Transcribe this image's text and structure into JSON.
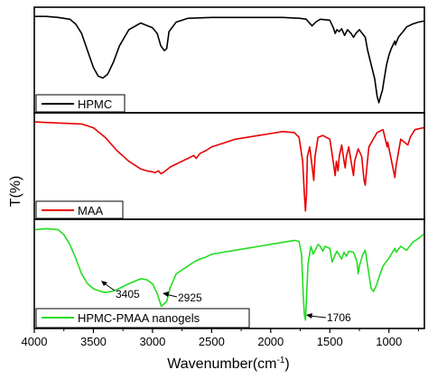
{
  "chart_data": {
    "type": "line",
    "xlabel": "Wavenumber(cm",
    "xlabel_sup": "-1",
    "xlabel_end": ")",
    "ylabel": "T(%)",
    "xlim": [
      4000,
      700
    ],
    "x_reversed": true,
    "x_ticks": [
      4000,
      3500,
      3000,
      2500,
      2000,
      1500,
      1000
    ],
    "x_tick_labels": [
      "4000",
      "3500",
      "3000",
      "2500",
      "2000",
      "1500",
      "1000"
    ],
    "stacked_panels": 3,
    "series": [
      {
        "name": "HPMC",
        "color": "#000000",
        "panel": 0,
        "points": [
          [
            3990,
            0.96
          ],
          [
            3900,
            0.96
          ],
          [
            3800,
            0.95
          ],
          [
            3700,
            0.93
          ],
          [
            3650,
            0.88
          ],
          [
            3600,
            0.78
          ],
          [
            3550,
            0.6
          ],
          [
            3500,
            0.42
          ],
          [
            3460,
            0.33
          ],
          [
            3420,
            0.31
          ],
          [
            3380,
            0.35
          ],
          [
            3330,
            0.48
          ],
          [
            3280,
            0.65
          ],
          [
            3200,
            0.82
          ],
          [
            3100,
            0.89
          ],
          [
            3000,
            0.84
          ],
          [
            2960,
            0.78
          ],
          [
            2930,
            0.65
          ],
          [
            2900,
            0.6
          ],
          [
            2880,
            0.62
          ],
          [
            2860,
            0.8
          ],
          [
            2800,
            0.9
          ],
          [
            2700,
            0.94
          ],
          [
            2500,
            0.95
          ],
          [
            2300,
            0.95
          ],
          [
            2100,
            0.95
          ],
          [
            1900,
            0.95
          ],
          [
            1750,
            0.94
          ],
          [
            1700,
            0.93
          ],
          [
            1650,
            0.86
          ],
          [
            1620,
            0.9
          ],
          [
            1580,
            0.93
          ],
          [
            1500,
            0.92
          ],
          [
            1470,
            0.84
          ],
          [
            1455,
            0.78
          ],
          [
            1440,
            0.82
          ],
          [
            1420,
            0.8
          ],
          [
            1400,
            0.83
          ],
          [
            1375,
            0.76
          ],
          [
            1350,
            0.82
          ],
          [
            1320,
            0.78
          ],
          [
            1300,
            0.74
          ],
          [
            1280,
            0.78
          ],
          [
            1250,
            0.82
          ],
          [
            1200,
            0.74
          ],
          [
            1180,
            0.6
          ],
          [
            1150,
            0.45
          ],
          [
            1120,
            0.3
          ],
          [
            1100,
            0.12
          ],
          [
            1085,
            0.05
          ],
          [
            1070,
            0.12
          ],
          [
            1055,
            0.18
          ],
          [
            1040,
            0.3
          ],
          [
            1020,
            0.45
          ],
          [
            1000,
            0.55
          ],
          [
            980,
            0.62
          ],
          [
            950,
            0.7
          ],
          [
            945,
            0.66
          ],
          [
            920,
            0.74
          ],
          [
            880,
            0.8
          ],
          [
            850,
            0.85
          ],
          [
            800,
            0.88
          ],
          [
            750,
            0.9
          ],
          [
            710,
            0.91
          ]
        ]
      },
      {
        "name": "MAA",
        "color": "#e60000",
        "panel": 1,
        "points": [
          [
            3990,
            0.96
          ],
          [
            3800,
            0.95
          ],
          [
            3600,
            0.94
          ],
          [
            3500,
            0.9
          ],
          [
            3400,
            0.8
          ],
          [
            3300,
            0.66
          ],
          [
            3200,
            0.55
          ],
          [
            3100,
            0.47
          ],
          [
            3050,
            0.45
          ],
          [
            3000,
            0.44
          ],
          [
            2980,
            0.43
          ],
          [
            2950,
            0.45
          ],
          [
            2930,
            0.42
          ],
          [
            2900,
            0.44
          ],
          [
            2850,
            0.49
          ],
          [
            2800,
            0.52
          ],
          [
            2750,
            0.55
          ],
          [
            2700,
            0.58
          ],
          [
            2650,
            0.61
          ],
          [
            2630,
            0.58
          ],
          [
            2600,
            0.63
          ],
          [
            2550,
            0.66
          ],
          [
            2500,
            0.7
          ],
          [
            2400,
            0.74
          ],
          [
            2300,
            0.78
          ],
          [
            2200,
            0.8
          ],
          [
            2100,
            0.82
          ],
          [
            2000,
            0.84
          ],
          [
            1900,
            0.86
          ],
          [
            1800,
            0.85
          ],
          [
            1760,
            0.8
          ],
          [
            1730,
            0.55
          ],
          [
            1715,
            0.2
          ],
          [
            1706,
            0.03
          ],
          [
            1698,
            0.2
          ],
          [
            1690,
            0.6
          ],
          [
            1670,
            0.7
          ],
          [
            1650,
            0.5
          ],
          [
            1636,
            0.35
          ],
          [
            1625,
            0.6
          ],
          [
            1600,
            0.8
          ],
          [
            1560,
            0.82
          ],
          [
            1500,
            0.78
          ],
          [
            1480,
            0.62
          ],
          [
            1455,
            0.4
          ],
          [
            1445,
            0.55
          ],
          [
            1430,
            0.45
          ],
          [
            1420,
            0.6
          ],
          [
            1400,
            0.72
          ],
          [
            1380,
            0.55
          ],
          [
            1370,
            0.48
          ],
          [
            1360,
            0.6
          ],
          [
            1340,
            0.7
          ],
          [
            1320,
            0.55
          ],
          [
            1300,
            0.4
          ],
          [
            1290,
            0.55
          ],
          [
            1260,
            0.68
          ],
          [
            1230,
            0.6
          ],
          [
            1210,
            0.35
          ],
          [
            1200,
            0.3
          ],
          [
            1190,
            0.45
          ],
          [
            1170,
            0.7
          ],
          [
            1100,
            0.85
          ],
          [
            1050,
            0.88
          ],
          [
            1015,
            0.7
          ],
          [
            1010,
            0.75
          ],
          [
            950,
            0.38
          ],
          [
            940,
            0.5
          ],
          [
            900,
            0.78
          ],
          [
            840,
            0.72
          ],
          [
            820,
            0.8
          ],
          [
            780,
            0.88
          ],
          [
            710,
            0.9
          ]
        ]
      },
      {
        "name": "HPMC-PMAA nanogels",
        "color": "#22dd22",
        "panel": 2,
        "points": [
          [
            3990,
            0.95
          ],
          [
            3900,
            0.96
          ],
          [
            3800,
            0.95
          ],
          [
            3750,
            0.9
          ],
          [
            3700,
            0.8
          ],
          [
            3650,
            0.66
          ],
          [
            3600,
            0.5
          ],
          [
            3550,
            0.4
          ],
          [
            3500,
            0.35
          ],
          [
            3460,
            0.33
          ],
          [
            3405,
            0.31
          ],
          [
            3350,
            0.32
          ],
          [
            3300,
            0.34
          ],
          [
            3200,
            0.4
          ],
          [
            3100,
            0.45
          ],
          [
            3050,
            0.44
          ],
          [
            3000,
            0.4
          ],
          [
            2960,
            0.3
          ],
          [
            2925,
            0.17
          ],
          [
            2880,
            0.22
          ],
          [
            2850,
            0.36
          ],
          [
            2800,
            0.5
          ],
          [
            2750,
            0.54
          ],
          [
            2700,
            0.58
          ],
          [
            2650,
            0.62
          ],
          [
            2600,
            0.65
          ],
          [
            2550,
            0.67
          ],
          [
            2500,
            0.7
          ],
          [
            2400,
            0.72
          ],
          [
            2300,
            0.74
          ],
          [
            2200,
            0.76
          ],
          [
            2100,
            0.78
          ],
          [
            2000,
            0.8
          ],
          [
            1900,
            0.82
          ],
          [
            1800,
            0.84
          ],
          [
            1760,
            0.83
          ],
          [
            1740,
            0.7
          ],
          [
            1725,
            0.3
          ],
          [
            1715,
            0.08
          ],
          [
            1706,
            0.03
          ],
          [
            1698,
            0.25
          ],
          [
            1685,
            0.6
          ],
          [
            1660,
            0.78
          ],
          [
            1640,
            0.7
          ],
          [
            1620,
            0.75
          ],
          [
            1600,
            0.8
          ],
          [
            1580,
            0.78
          ],
          [
            1560,
            0.73
          ],
          [
            1540,
            0.78
          ],
          [
            1500,
            0.76
          ],
          [
            1480,
            0.62
          ],
          [
            1460,
            0.68
          ],
          [
            1440,
            0.73
          ],
          [
            1400,
            0.65
          ],
          [
            1380,
            0.72
          ],
          [
            1360,
            0.68
          ],
          [
            1340,
            0.73
          ],
          [
            1300,
            0.72
          ],
          [
            1270,
            0.62
          ],
          [
            1260,
            0.5
          ],
          [
            1250,
            0.58
          ],
          [
            1220,
            0.7
          ],
          [
            1200,
            0.74
          ],
          [
            1170,
            0.5
          ],
          [
            1150,
            0.35
          ],
          [
            1130,
            0.32
          ],
          [
            1100,
            0.4
          ],
          [
            1080,
            0.48
          ],
          [
            1050,
            0.58
          ],
          [
            1000,
            0.66
          ],
          [
            950,
            0.76
          ],
          [
            940,
            0.72
          ],
          [
            900,
            0.78
          ],
          [
            850,
            0.74
          ],
          [
            800,
            0.82
          ],
          [
            750,
            0.86
          ],
          [
            710,
            0.9
          ]
        ]
      }
    ],
    "annotations": [
      {
        "label": "3405",
        "x": 3405,
        "panel": 2
      },
      {
        "label": "2925",
        "x": 2925,
        "panel": 2
      },
      {
        "label": "1706",
        "x": 1706,
        "panel": 2
      }
    ],
    "legend_placement": "bottom-left of each panel",
    "grid": false
  }
}
